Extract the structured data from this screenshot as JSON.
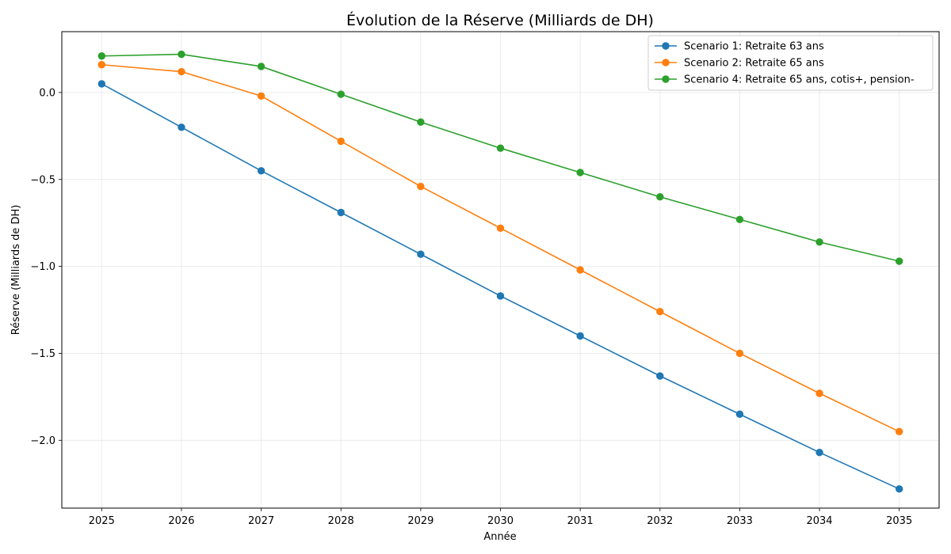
{
  "chart_data": {
    "type": "line",
    "title": "Évolution de la Réserve (Milliards de DH)",
    "xlabel": "Année",
    "ylabel": "Réserve (Milliards de DH)",
    "x": [
      2025,
      2026,
      2027,
      2028,
      2029,
      2030,
      2031,
      2032,
      2033,
      2034,
      2035
    ],
    "x_tick_labels": [
      "2025",
      "2026",
      "2027",
      "2028",
      "2029",
      "2030",
      "2031",
      "2032",
      "2033",
      "2034",
      "2035"
    ],
    "xlim": [
      2024.5,
      2035.5
    ],
    "ylim": [
      -2.39,
      0.35
    ],
    "y_ticks": [
      0.0,
      -0.5,
      -1.0,
      -1.5,
      -2.0
    ],
    "y_tick_labels": [
      "0.0",
      "−0.5",
      "−1.0",
      "−1.5",
      "−2.0"
    ],
    "grid": true,
    "legend_position": "top-right",
    "series": [
      {
        "name": "Scenario 1: Retraite 63 ans",
        "color": "#1f77b4",
        "values": [
          0.05,
          -0.2,
          -0.45,
          -0.69,
          -0.93,
          -1.17,
          -1.4,
          -1.63,
          -1.85,
          -2.07,
          -2.28
        ]
      },
      {
        "name": "Scenario 2: Retraite 65 ans",
        "color": "#ff7f0e",
        "values": [
          0.16,
          0.12,
          -0.02,
          -0.28,
          -0.54,
          -0.78,
          -1.02,
          -1.26,
          -1.5,
          -1.73,
          -1.95
        ]
      },
      {
        "name": "Scenario 4: Retraite 65 ans, cotis+, pension-",
        "color": "#2ca02c",
        "values": [
          0.21,
          0.22,
          0.15,
          -0.01,
          -0.17,
          -0.32,
          -0.46,
          -0.6,
          -0.73,
          -0.86,
          -0.97
        ]
      }
    ]
  }
}
